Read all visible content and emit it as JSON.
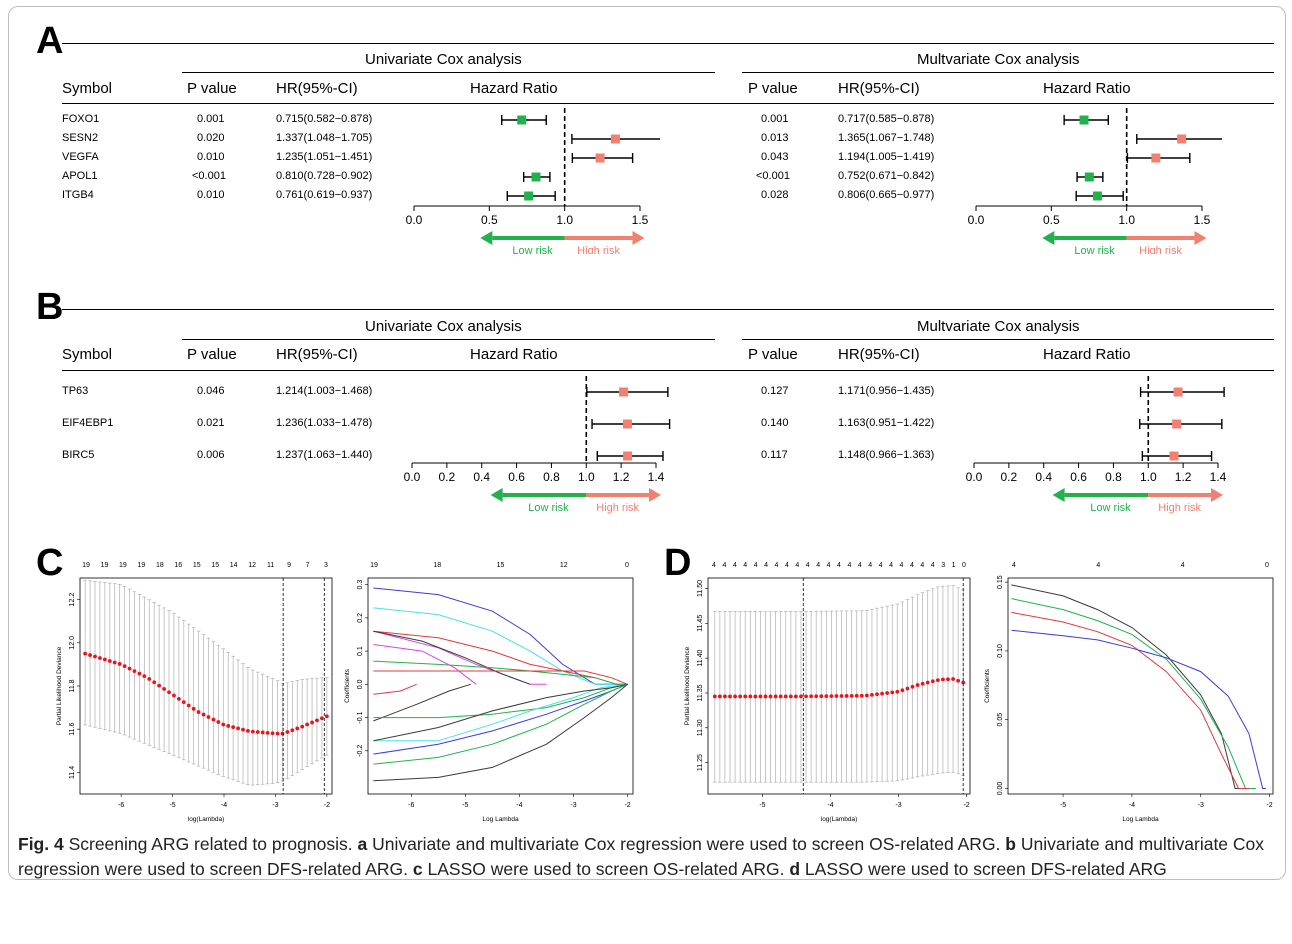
{
  "colors": {
    "low_risk": "#22b14c",
    "high_risk": "#f08070",
    "line": "#000000",
    "lasso_point": "#e8141e",
    "errbar": "#b0b0b0"
  },
  "panels": {
    "a": "A",
    "b": "B",
    "c": "C",
    "d": "D"
  },
  "forest_headers": {
    "univariate": "Univariate Cox analysis",
    "multivariate": "Multvariate Cox analysis",
    "symbol": "Symbol",
    "pvalue": "P value",
    "hr": "HR(95%-CI)",
    "hazard_ratio": "Hazard Ratio",
    "low_risk": "Low risk",
    "high_risk": "High risk"
  },
  "chart_data": [
    {
      "type": "forest",
      "panel": "A",
      "title": "Univariate Cox analysis",
      "xlim": [
        0,
        1.5
      ],
      "ticks": [
        "0.0",
        "0.5",
        "1.0",
        "1.5"
      ],
      "reference": 1.0,
      "rows": [
        {
          "symbol": "FOXO1",
          "p": "0.001",
          "hr_text": "0.715(0.582−0.878)",
          "hr": 0.715,
          "lo": 0.582,
          "hi": 0.878
        },
        {
          "symbol": "SESN2",
          "p": "0.020",
          "hr_text": "1.337(1.048−1.705)",
          "hr": 1.337,
          "lo": 1.048,
          "hi": 1.705
        },
        {
          "symbol": "VEGFA",
          "p": "0.010",
          "hr_text": "1.235(1.051−1.451)",
          "hr": 1.235,
          "lo": 1.051,
          "hi": 1.451
        },
        {
          "symbol": "APOL1",
          "p": "<0.001",
          "hr_text": "0.810(0.728−0.902)",
          "hr": 0.81,
          "lo": 0.728,
          "hi": 0.902
        },
        {
          "symbol": "ITGB4",
          "p": "0.010",
          "hr_text": "0.761(0.619−0.937)",
          "hr": 0.761,
          "lo": 0.619,
          "hi": 0.937
        }
      ]
    },
    {
      "type": "forest",
      "panel": "A",
      "title": "Multvariate Cox analysis",
      "xlim": [
        0,
        1.5
      ],
      "ticks": [
        "0.0",
        "0.5",
        "1.0",
        "1.5"
      ],
      "reference": 1.0,
      "rows": [
        {
          "p": "0.001",
          "hr_text": "0.717(0.585−0.878)",
          "hr": 0.717,
          "lo": 0.585,
          "hi": 0.878
        },
        {
          "p": "0.013",
          "hr_text": "1.365(1.067−1.748)",
          "hr": 1.365,
          "lo": 1.067,
          "hi": 1.748
        },
        {
          "p": "0.043",
          "hr_text": "1.194(1.005−1.419)",
          "hr": 1.194,
          "lo": 1.005,
          "hi": 1.419
        },
        {
          "p": "<0.001",
          "hr_text": "0.752(0.671−0.842)",
          "hr": 0.752,
          "lo": 0.671,
          "hi": 0.842
        },
        {
          "p": "0.028",
          "hr_text": "0.806(0.665−0.977)",
          "hr": 0.806,
          "lo": 0.665,
          "hi": 0.977
        }
      ]
    },
    {
      "type": "forest",
      "panel": "B",
      "title": "Univariate Cox analysis",
      "xlim": [
        0,
        1.4
      ],
      "ticks": [
        "0.0",
        "0.2",
        "0.4",
        "0.6",
        "0.8",
        "1.0",
        "1.2",
        "1.4"
      ],
      "reference": 1.0,
      "rows": [
        {
          "symbol": "TP63",
          "p": "0.046",
          "hr_text": "1.214(1.003−1.468)",
          "hr": 1.214,
          "lo": 1.003,
          "hi": 1.468
        },
        {
          "symbol": "EIF4EBP1",
          "p": "0.021",
          "hr_text": "1.236(1.033−1.478)",
          "hr": 1.236,
          "lo": 1.033,
          "hi": 1.478
        },
        {
          "symbol": "BIRC5",
          "p": "0.006",
          "hr_text": "1.237(1.063−1.440)",
          "hr": 1.237,
          "lo": 1.063,
          "hi": 1.44
        }
      ]
    },
    {
      "type": "forest",
      "panel": "B",
      "title": "Multivariate Cox analysis",
      "xlim": [
        0,
        1.4
      ],
      "ticks": [
        "0.0",
        "0.2",
        "0.4",
        "0.6",
        "0.8",
        "1.0",
        "1.2",
        "1.4"
      ],
      "reference": 1.0,
      "rows": [
        {
          "p": "0.127",
          "hr_text": "1.171(0.956−1.435)",
          "hr": 1.171,
          "lo": 0.956,
          "hi": 1.435
        },
        {
          "p": "0.140",
          "hr_text": "1.163(0.951−1.422)",
          "hr": 1.163,
          "lo": 0.951,
          "hi": 1.422
        },
        {
          "p": "0.117",
          "hr_text": "1.148(0.966−1.363)",
          "hr": 1.148,
          "lo": 0.966,
          "hi": 1.363
        }
      ]
    },
    {
      "type": "scatter",
      "panel": "C",
      "kind": "lasso_cv",
      "xlabel": "log(Lambda)",
      "ylabel": "Partial Likelihood Deviance",
      "xlim": [
        -6.8,
        -1.9
      ],
      "ylim": [
        11.3,
        12.3
      ],
      "xticks": [
        "-6",
        "-5",
        "-4",
        "-3",
        "-2"
      ],
      "yticks": [
        "11.4",
        "11.6",
        "11.8",
        "12.0",
        "12.2"
      ],
      "top_ticks": [
        "19",
        "19",
        "19",
        "19",
        "18",
        "16",
        "15",
        "15",
        "14",
        "12",
        "11",
        "9",
        "7",
        "3"
      ],
      "vlines": [
        -2.85,
        -2.05
      ],
      "curve": {
        "x": [
          -6.7,
          -6.0,
          -5.5,
          -5.0,
          -4.5,
          -4.0,
          -3.5,
          -3.0,
          -2.85,
          -2.5,
          -2.0
        ],
        "y": [
          11.95,
          11.9,
          11.84,
          11.76,
          11.68,
          11.62,
          11.59,
          11.58,
          11.58,
          11.61,
          11.66
        ]
      },
      "band": {
        "x": [
          -6.7,
          -6.0,
          -5.0,
          -4.0,
          -3.5,
          -3.0,
          -2.85,
          -2.5,
          -2.0
        ],
        "upper": [
          12.29,
          12.27,
          12.14,
          11.97,
          11.88,
          11.83,
          11.81,
          11.83,
          11.84
        ],
        "lower": [
          11.62,
          11.58,
          11.48,
          11.38,
          11.34,
          11.35,
          11.36,
          11.41,
          11.48
        ]
      }
    },
    {
      "type": "line",
      "panel": "C",
      "kind": "lasso_coef",
      "xlabel": "Log Lambda",
      "ylabel": "Coefficients",
      "xlim": [
        -6.8,
        -1.9
      ],
      "ylim": [
        -0.33,
        0.32
      ],
      "xticks": [
        "-6",
        "-5",
        "-4",
        "-3",
        "-2"
      ],
      "yticks": [
        "-0.2",
        "-0.1",
        "0.0",
        "0.1",
        "0.2",
        "0.3"
      ],
      "top_ticks": [
        "19",
        "18",
        "15",
        "12",
        "0"
      ],
      "series": [
        {
          "color": "#3b3bd8",
          "x": [
            -6.7,
            -5.5,
            -4.5,
            -3.8,
            -3.2,
            -2.6,
            -2.2,
            -2.0
          ],
          "y": [
            0.29,
            0.27,
            0.22,
            0.15,
            0.06,
            0.0,
            0.0,
            0.0
          ]
        },
        {
          "color": "#48e0ea",
          "x": [
            -6.7,
            -5.5,
            -4.5,
            -3.8,
            -3.2,
            -2.6,
            -2.2,
            -2.0
          ],
          "y": [
            0.23,
            0.21,
            0.16,
            0.1,
            0.04,
            0.0,
            0.0,
            0.0
          ]
        },
        {
          "color": "#e03a3a",
          "x": [
            -6.7,
            -5.5,
            -4.5,
            -3.8,
            -3.2,
            -2.6,
            -2.2,
            -2.0
          ],
          "y": [
            0.16,
            0.14,
            0.1,
            0.06,
            0.04,
            0.02,
            0.0,
            0.0
          ]
        },
        {
          "color": "#d846d8",
          "x": [
            -6.7,
            -5.5,
            -4.8,
            -4.3,
            -3.8,
            -3.5
          ],
          "y": [
            0.16,
            0.11,
            0.06,
            0.03,
            0.0,
            0.0
          ]
        },
        {
          "color": "#3a3a3a",
          "x": [
            -6.7,
            -5.8,
            -5.0,
            -4.3,
            -3.8
          ],
          "y": [
            0.16,
            0.13,
            0.08,
            0.03,
            0.0
          ]
        },
        {
          "color": "#22b14c",
          "x": [
            -6.7,
            -5.5,
            -4.5,
            -3.8,
            -3.2,
            -2.6,
            -2.2,
            -2.0
          ],
          "y": [
            0.07,
            0.06,
            0.05,
            0.04,
            0.03,
            0.02,
            0.0,
            0.0
          ]
        },
        {
          "color": "#e03a3a",
          "x": [
            -6.7,
            -5.5,
            -4.5,
            -3.5,
            -2.8,
            -2.3,
            -2.0
          ],
          "y": [
            0.04,
            0.04,
            0.04,
            0.04,
            0.04,
            0.02,
            0.0
          ]
        },
        {
          "color": "#d846d8",
          "x": [
            -6.7,
            -5.8,
            -5.2,
            -4.8
          ],
          "y": [
            0.12,
            0.1,
            0.05,
            0.0
          ]
        },
        {
          "color": "#3a3a3a",
          "x": [
            -6.7,
            -5.9,
            -5.3,
            -4.9
          ],
          "y": [
            -0.11,
            -0.06,
            -0.02,
            0.0
          ]
        },
        {
          "color": "#e03a3a",
          "x": [
            -6.7,
            -6.2,
            -5.9
          ],
          "y": [
            -0.03,
            -0.02,
            0.0
          ]
        },
        {
          "color": "#22b14c",
          "x": [
            -6.7,
            -5.5,
            -4.5,
            -3.5,
            -2.8,
            -2.3,
            -2.0
          ],
          "y": [
            -0.1,
            -0.1,
            -0.09,
            -0.07,
            -0.04,
            -0.01,
            0.0
          ]
        },
        {
          "color": "#48e0ea",
          "x": [
            -6.7,
            -5.5,
            -4.5,
            -3.8,
            -3.0,
            -2.5,
            -2.0
          ],
          "y": [
            -0.17,
            -0.17,
            -0.12,
            -0.08,
            -0.04,
            -0.01,
            0.0
          ]
        },
        {
          "color": "#3b3bd8",
          "x": [
            -6.7,
            -5.5,
            -4.5,
            -3.5,
            -2.8,
            -2.3,
            -2.0
          ],
          "y": [
            -0.21,
            -0.18,
            -0.14,
            -0.09,
            -0.05,
            -0.02,
            0.0
          ]
        },
        {
          "color": "#3a3a3a",
          "x": [
            -6.7,
            -5.5,
            -4.5,
            -3.5,
            -2.8,
            -2.3,
            -2.0
          ],
          "y": [
            -0.17,
            -0.13,
            -0.08,
            -0.04,
            -0.02,
            -0.01,
            0.0
          ]
        },
        {
          "color": "#22b14c",
          "x": [
            -6.7,
            -5.5,
            -4.5,
            -3.5,
            -2.8,
            -2.3,
            -2.0
          ],
          "y": [
            -0.24,
            -0.22,
            -0.18,
            -0.12,
            -0.06,
            -0.02,
            0.0
          ]
        },
        {
          "color": "#3a3a3a",
          "x": [
            -6.7,
            -5.5,
            -4.5,
            -3.5,
            -2.8,
            -2.3,
            -2.0
          ],
          "y": [
            -0.29,
            -0.28,
            -0.25,
            -0.18,
            -0.1,
            -0.04,
            0.0
          ]
        }
      ]
    },
    {
      "type": "scatter",
      "panel": "D",
      "kind": "lasso_cv",
      "xlabel": "log(Lambda)",
      "ylabel": "Partial Likelihood Deviance",
      "xlim": [
        -5.8,
        -1.95
      ],
      "ylim": [
        11.205,
        11.515
      ],
      "xticks": [
        "-5",
        "-4",
        "-3",
        "-2"
      ],
      "yticks": [
        "11.25",
        "11.30",
        "11.35",
        "11.40",
        "11.45",
        "11.50"
      ],
      "top_ticks": [
        "4",
        "4",
        "4",
        "4",
        "4",
        "4",
        "4",
        "4",
        "4",
        "4",
        "4",
        "4",
        "4",
        "4",
        "4",
        "4",
        "4",
        "4",
        "4",
        "4",
        "4",
        "4",
        "3",
        "1",
        "0"
      ],
      "vlines": [
        -4.4,
        -2.05
      ],
      "curve": {
        "x": [
          -5.75,
          -4.5,
          -3.5,
          -3.0,
          -2.7,
          -2.4,
          -2.2,
          -2.05
        ],
        "y": [
          11.345,
          11.345,
          11.346,
          11.352,
          11.362,
          11.369,
          11.37,
          11.365
        ]
      },
      "band": {
        "x": [
          -5.75,
          -4.5,
          -3.5,
          -3.0,
          -2.7,
          -2.4,
          -2.2,
          -2.05
        ],
        "upper": [
          11.467,
          11.467,
          11.468,
          11.478,
          11.492,
          11.503,
          11.504,
          11.498
        ],
        "lower": [
          11.222,
          11.222,
          11.222,
          11.224,
          11.23,
          11.235,
          11.236,
          11.232
        ]
      }
    },
    {
      "type": "line",
      "panel": "D",
      "kind": "lasso_coef",
      "xlabel": "Log Lambda",
      "ylabel": "Coefficients",
      "xlim": [
        -5.8,
        -1.95
      ],
      "ylim": [
        -0.004,
        0.153
      ],
      "xticks": [
        "-5",
        "-4",
        "-3",
        "-2"
      ],
      "yticks": [
        "0.00",
        "0.05",
        "0.10",
        "0.15"
      ],
      "top_ticks": [
        "4",
        "4",
        "4",
        "0"
      ],
      "series": [
        {
          "color": "#3a3a3a",
          "x": [
            -5.75,
            -5.0,
            -4.5,
            -4.0,
            -3.5,
            -3.0,
            -2.7,
            -2.5,
            -2.3
          ],
          "y": [
            0.148,
            0.14,
            0.13,
            0.117,
            0.097,
            0.068,
            0.04,
            0.0,
            0.0
          ]
        },
        {
          "color": "#22b14c",
          "x": [
            -5.75,
            -5.0,
            -4.5,
            -4.0,
            -3.5,
            -3.0,
            -2.6,
            -2.35,
            -2.2
          ],
          "y": [
            0.138,
            0.13,
            0.122,
            0.112,
            0.094,
            0.065,
            0.03,
            0.0,
            0.0
          ]
        },
        {
          "color": "#e03a3a",
          "x": [
            -5.75,
            -5.0,
            -4.5,
            -4.0,
            -3.5,
            -3.0,
            -2.7,
            -2.45,
            -2.3
          ],
          "y": [
            0.128,
            0.121,
            0.114,
            0.104,
            0.085,
            0.057,
            0.025,
            0.0,
            0.0
          ]
        },
        {
          "color": "#3b3bd8",
          "x": [
            -5.75,
            -5.0,
            -4.5,
            -4.0,
            -3.5,
            -3.0,
            -2.6,
            -2.3,
            -2.1,
            -2.05
          ],
          "y": [
            0.115,
            0.111,
            0.108,
            0.102,
            0.095,
            0.085,
            0.067,
            0.04,
            0.0,
            0.0
          ]
        }
      ]
    }
  ],
  "caption": {
    "fig_label": "Fig. 4",
    "title": " Screening ARG related to prognosis. ",
    "a": "a",
    "a_text": " Univariate and multivariate Cox regression were used to screen OS-related ARG. ",
    "b": "b",
    "b_text": " Univariate and multivariate Cox regression were used to screen DFS-related ARG. ",
    "c": "c",
    "c_text": " LASSO were used to screen OS-related ARG. ",
    "d": "d",
    "d_text": " LASSO were used to screen DFS-related ARG"
  }
}
